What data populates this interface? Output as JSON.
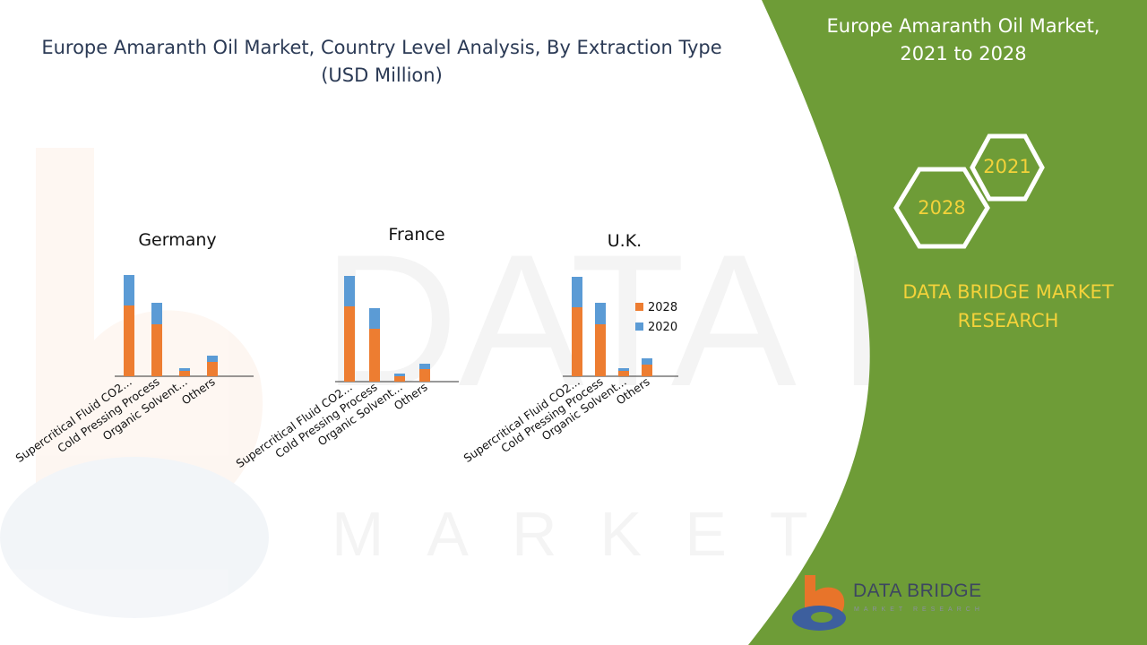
{
  "title_lines": [
    "Europe Amaranth Oil Market, Country Level Analysis, By Extraction Type",
    "(USD Million)"
  ],
  "panel": {
    "title_lines": [
      "Europe Amaranth Oil Market,",
      "2021 to 2028"
    ],
    "hex_year_a": "2021",
    "hex_year_b": "2028",
    "brand_lines": [
      "DATA BRIDGE MARKET",
      "RESEARCH"
    ],
    "logo_name": "DATA BRIDGE",
    "logo_tagline": "MARKET RESEARCH"
  },
  "colors": {
    "series_2028": "#ed7d31",
    "series_2020": "#5b9bd5",
    "panel_green": "#6e9c37",
    "accent_yellow": "#f3d23a",
    "title_navy": "#2b3a55"
  },
  "chart_data": [
    {
      "type": "bar",
      "stacked": true,
      "title": "Germany",
      "categories": [
        "Supercritical Fluid CO2...",
        "Cold Pressing Process",
        "Organic Solvent...",
        "Others"
      ],
      "series": [
        {
          "name": "2028",
          "values": [
            79,
            58,
            6,
            16
          ]
        },
        {
          "name": "2020",
          "values": [
            34,
            24,
            3,
            7
          ]
        }
      ],
      "ylim": [
        0,
        115
      ],
      "legend": "none"
    },
    {
      "type": "bar",
      "stacked": true,
      "title": "France",
      "categories": [
        "Supercritical Fluid CO2...",
        "Cold Pressing Process",
        "Organic Solvent...",
        "Others"
      ],
      "series": [
        {
          "name": "2028",
          "values": [
            84,
            59,
            6,
            14
          ]
        },
        {
          "name": "2020",
          "values": [
            34,
            23,
            3,
            6
          ]
        }
      ],
      "ylim": [
        0,
        120
      ],
      "legend": "none"
    },
    {
      "type": "bar",
      "stacked": true,
      "title": "U.K.",
      "categories": [
        "Supercritical Fluid CO2...",
        "Cold Pressing Process",
        "Organic Solvent...",
        "Others"
      ],
      "series": [
        {
          "name": "2028",
          "values": [
            77,
            58,
            6,
            13
          ]
        },
        {
          "name": "2020",
          "values": [
            34,
            24,
            3,
            7
          ]
        }
      ],
      "ylim": [
        0,
        115
      ],
      "legend": "right"
    }
  ]
}
